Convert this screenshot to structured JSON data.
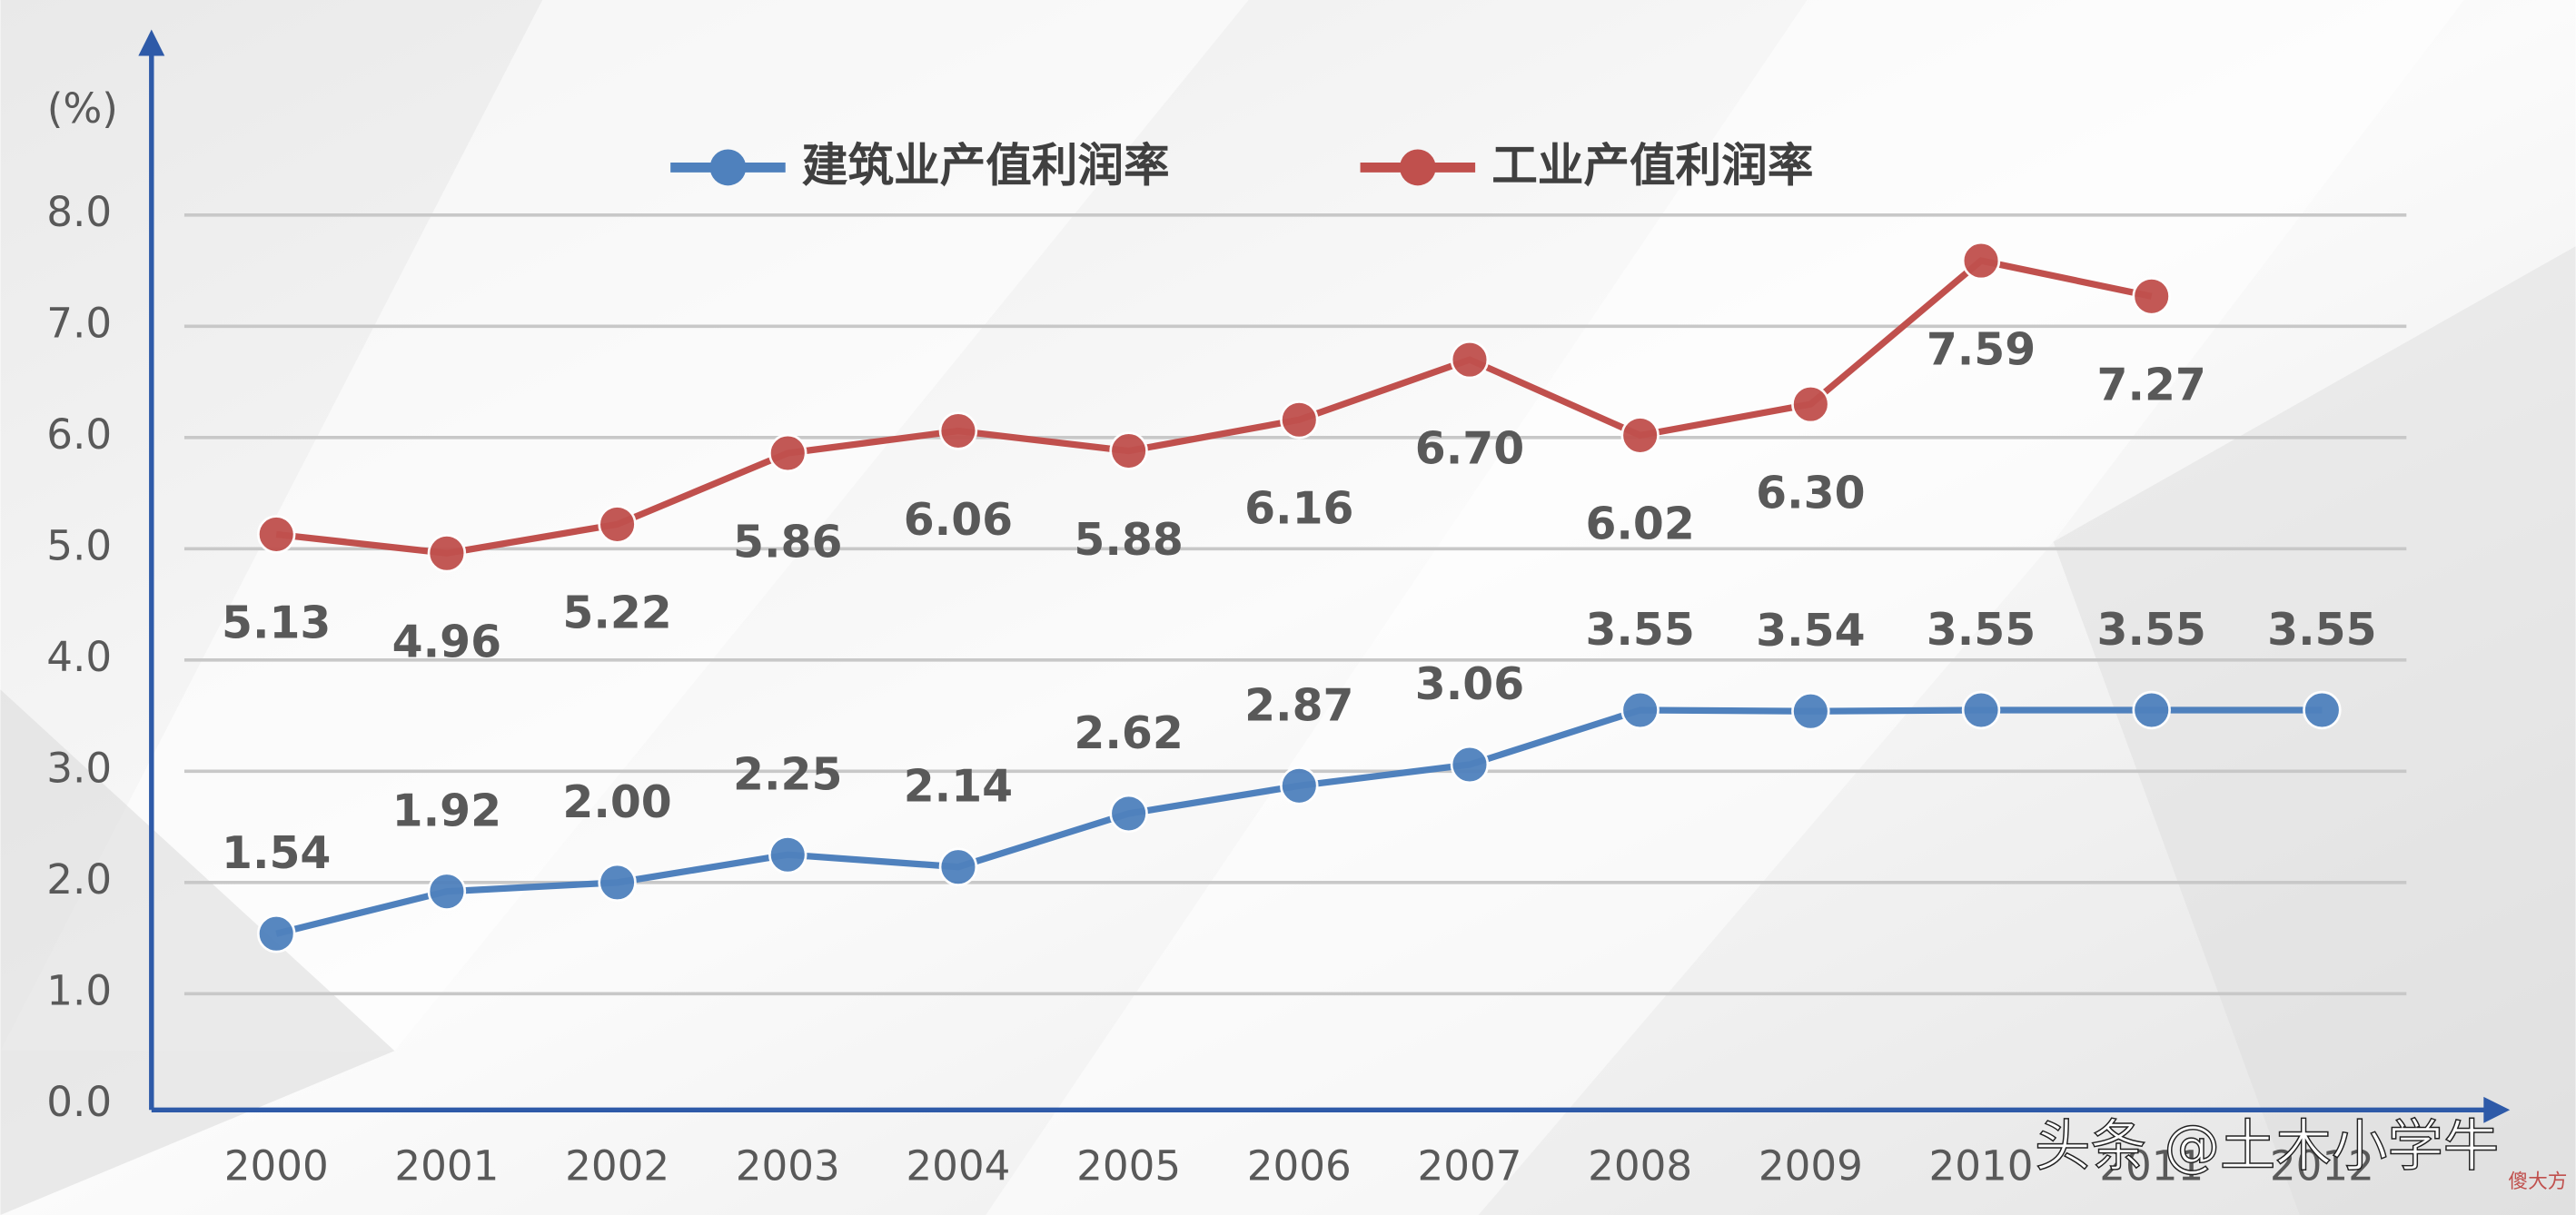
{
  "chart_data": {
    "type": "line",
    "y_label": "(%)",
    "categories": [
      "2000",
      "2001",
      "2002",
      "2003",
      "2004",
      "2005",
      "2006",
      "2007",
      "2008",
      "2009",
      "2010",
      "2011",
      "2012"
    ],
    "series": [
      {
        "name": "建筑业产值利润率",
        "color": "#4f81bd",
        "values": [
          1.54,
          1.92,
          2.0,
          2.25,
          2.14,
          2.62,
          2.87,
          3.06,
          3.55,
          3.54,
          3.55,
          3.55,
          3.55
        ],
        "value_labels": [
          "1.54",
          "1.92",
          "2.00",
          "2.25",
          "2.14",
          "2.62",
          "2.87",
          "3.06",
          "3.55",
          "3.54",
          "3.55",
          "3.55",
          "3.55"
        ]
      },
      {
        "name": "工业产值利润率",
        "color": "#c0504d",
        "values": [
          5.13,
          4.96,
          5.22,
          5.86,
          6.06,
          5.88,
          6.16,
          6.7,
          6.02,
          6.3,
          7.59,
          7.27,
          null
        ],
        "value_labels": [
          "5.13",
          "4.96",
          "5.22",
          "5.86",
          "6.06",
          "5.88",
          "6.16",
          "6.70",
          "6.02",
          "6.30",
          "7.59",
          "7.27",
          null
        ]
      }
    ],
    "ylim": [
      0,
      8
    ],
    "yticks": [
      {
        "value": 0,
        "label": "0.0"
      },
      {
        "value": 1,
        "label": "1.0"
      },
      {
        "value": 2,
        "label": "2.0"
      },
      {
        "value": 3,
        "label": "3.0"
      },
      {
        "value": 4,
        "label": "4.0"
      },
      {
        "value": 5,
        "label": "5.0"
      },
      {
        "value": 6,
        "label": "6.0"
      },
      {
        "value": 7,
        "label": "7.0"
      },
      {
        "value": 8,
        "label": "8.0"
      }
    ],
    "grid": true,
    "legend": "top",
    "watermark": "头条 @土木小学牛",
    "watermark_small": "傻大方"
  }
}
